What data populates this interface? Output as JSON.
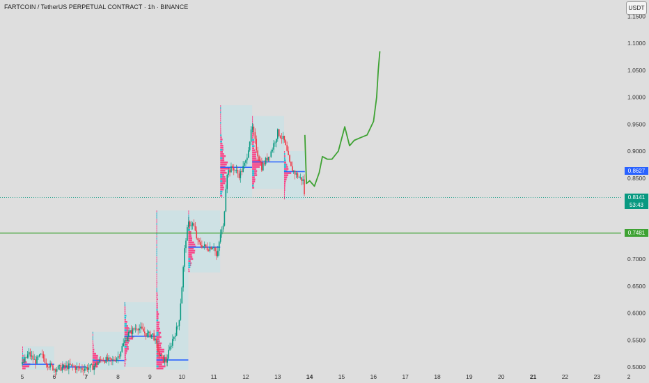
{
  "header": {
    "title": "FARTCOIN / TetherUS PERPETUAL CONTRACT · 1h · BINANCE",
    "currency": "USDT"
  },
  "price_tags": {
    "level_blue": "0.8627",
    "last_price": "0.8141",
    "countdown": "53:43",
    "level_green": "0.7481"
  },
  "colors": {
    "background": "#dedede",
    "candle_up": "#089981",
    "candle_down": "#f23645",
    "profile_bar": "#ff2d7a",
    "profile_bar_alt": "#1ec8d8",
    "poc_line": "#2962ff",
    "projection": "#3ea233",
    "horizontal_level": "#3ea233"
  },
  "chart_data": {
    "type": "candlestick",
    "y_axis": {
      "labels": [
        "1.1500",
        "1.1000",
        "1.0500",
        "1.0000",
        "0.9500",
        "0.9000",
        "0.8500",
        "0.7000",
        "0.6500",
        "0.6000",
        "0.5500",
        "0.5000"
      ],
      "range": [
        0.495,
        1.16
      ]
    },
    "x_axis": {
      "labels": [
        {
          "t": "5",
          "day": 5,
          "bold": false
        },
        {
          "t": "6",
          "day": 6,
          "bold": false
        },
        {
          "t": "7",
          "day": 7,
          "bold": true
        },
        {
          "t": "8",
          "day": 8,
          "bold": false
        },
        {
          "t": "9",
          "day": 9,
          "bold": false
        },
        {
          "t": "10",
          "day": 10,
          "bold": false
        },
        {
          "t": "11",
          "day": 11,
          "bold": false
        },
        {
          "t": "12",
          "day": 12,
          "bold": false
        },
        {
          "t": "13",
          "day": 13,
          "bold": false
        },
        {
          "t": "14",
          "day": 14,
          "bold": true
        },
        {
          "t": "15",
          "day": 15,
          "bold": false
        },
        {
          "t": "16",
          "day": 16,
          "bold": false
        },
        {
          "t": "17",
          "day": 17,
          "bold": false
        },
        {
          "t": "18",
          "day": 18,
          "bold": false
        },
        {
          "t": "19",
          "day": 19,
          "bold": false
        },
        {
          "t": "20",
          "day": 20,
          "bold": false
        },
        {
          "t": "21",
          "day": 21,
          "bold": true
        },
        {
          "t": "22",
          "day": 22,
          "bold": false
        },
        {
          "t": "23",
          "day": 23,
          "bold": false
        },
        {
          "t": "2",
          "day": 24,
          "bold": false
        }
      ]
    },
    "horizontal_levels": [
      {
        "price": 0.7481,
        "style": "solid",
        "color": "#3ea233"
      },
      {
        "price": 0.8141,
        "style": "dotted",
        "color": "#089981"
      }
    ],
    "profile_boxes": [
      {
        "x0": 5.0,
        "x1": 6.0,
        "y0": 0.495,
        "y1": 0.538,
        "poc": 0.505
      },
      {
        "x0": 6.25,
        "x1": 7.0,
        "y0": 0.495,
        "y1": 0.51,
        "poc": 0.5
      },
      {
        "x0": 7.2,
        "x1": 8.2,
        "y0": 0.495,
        "y1": 0.565,
        "poc": 0.512
      },
      {
        "x0": 8.2,
        "x1": 9.2,
        "y0": 0.5,
        "y1": 0.62,
        "poc": 0.557
      },
      {
        "x0": 9.2,
        "x1": 10.2,
        "y0": 0.495,
        "y1": 0.79,
        "poc": 0.513
      },
      {
        "x0": 10.2,
        "x1": 11.2,
        "y0": 0.675,
        "y1": 0.79,
        "poc": 0.722
      },
      {
        "x0": 11.2,
        "x1": 12.2,
        "y0": 0.815,
        "y1": 0.985,
        "poc": 0.87
      },
      {
        "x0": 12.2,
        "x1": 13.2,
        "y0": 0.83,
        "y1": 0.965,
        "poc": 0.88
      },
      {
        "x0": 13.2,
        "x1": 13.85,
        "y0": 0.81,
        "y1": 0.9,
        "poc": 0.862
      }
    ],
    "candle_path": [
      [
        5.0,
        0.505
      ],
      [
        5.2,
        0.525
      ],
      [
        5.4,
        0.51
      ],
      [
        5.6,
        0.522
      ],
      [
        5.8,
        0.505
      ],
      [
        6.0,
        0.497
      ],
      [
        6.3,
        0.499
      ],
      [
        6.5,
        0.502
      ],
      [
        6.8,
        0.497
      ],
      [
        7.2,
        0.5
      ],
      [
        7.5,
        0.515
      ],
      [
        7.8,
        0.51
      ],
      [
        8.0,
        0.52
      ],
      [
        8.3,
        0.56
      ],
      [
        8.6,
        0.575
      ],
      [
        8.9,
        0.56
      ],
      [
        9.1,
        0.56
      ],
      [
        9.3,
        0.52
      ],
      [
        9.5,
        0.51
      ],
      [
        9.7,
        0.55
      ],
      [
        9.9,
        0.58
      ],
      [
        10.0,
        0.65
      ],
      [
        10.1,
        0.73
      ],
      [
        10.2,
        0.765
      ],
      [
        10.35,
        0.765
      ],
      [
        10.5,
        0.73
      ],
      [
        10.8,
        0.72
      ],
      [
        11.0,
        0.725
      ],
      [
        11.1,
        0.7
      ],
      [
        11.2,
        0.745
      ],
      [
        11.3,
        0.76
      ],
      [
        11.4,
        0.86
      ],
      [
        11.6,
        0.87
      ],
      [
        11.8,
        0.855
      ],
      [
        12.0,
        0.88
      ],
      [
        12.2,
        0.945
      ],
      [
        12.35,
        0.9
      ],
      [
        12.5,
        0.87
      ],
      [
        12.8,
        0.9
      ],
      [
        13.0,
        0.935
      ],
      [
        13.2,
        0.92
      ],
      [
        13.4,
        0.87
      ],
      [
        13.6,
        0.855
      ],
      [
        13.8,
        0.845
      ],
      [
        13.85,
        0.81
      ]
    ],
    "projection_path": [
      [
        13.85,
        0.93
      ],
      [
        13.9,
        0.84
      ],
      [
        14.0,
        0.845
      ],
      [
        14.15,
        0.835
      ],
      [
        14.3,
        0.86
      ],
      [
        14.4,
        0.89
      ],
      [
        14.55,
        0.885
      ],
      [
        14.7,
        0.885
      ],
      [
        14.9,
        0.9
      ],
      [
        15.1,
        0.945
      ],
      [
        15.25,
        0.91
      ],
      [
        15.4,
        0.92
      ],
      [
        15.6,
        0.925
      ],
      [
        15.8,
        0.93
      ],
      [
        16.0,
        0.955
      ],
      [
        16.1,
        1.0
      ],
      [
        16.15,
        1.05
      ],
      [
        16.2,
        1.085
      ]
    ]
  }
}
